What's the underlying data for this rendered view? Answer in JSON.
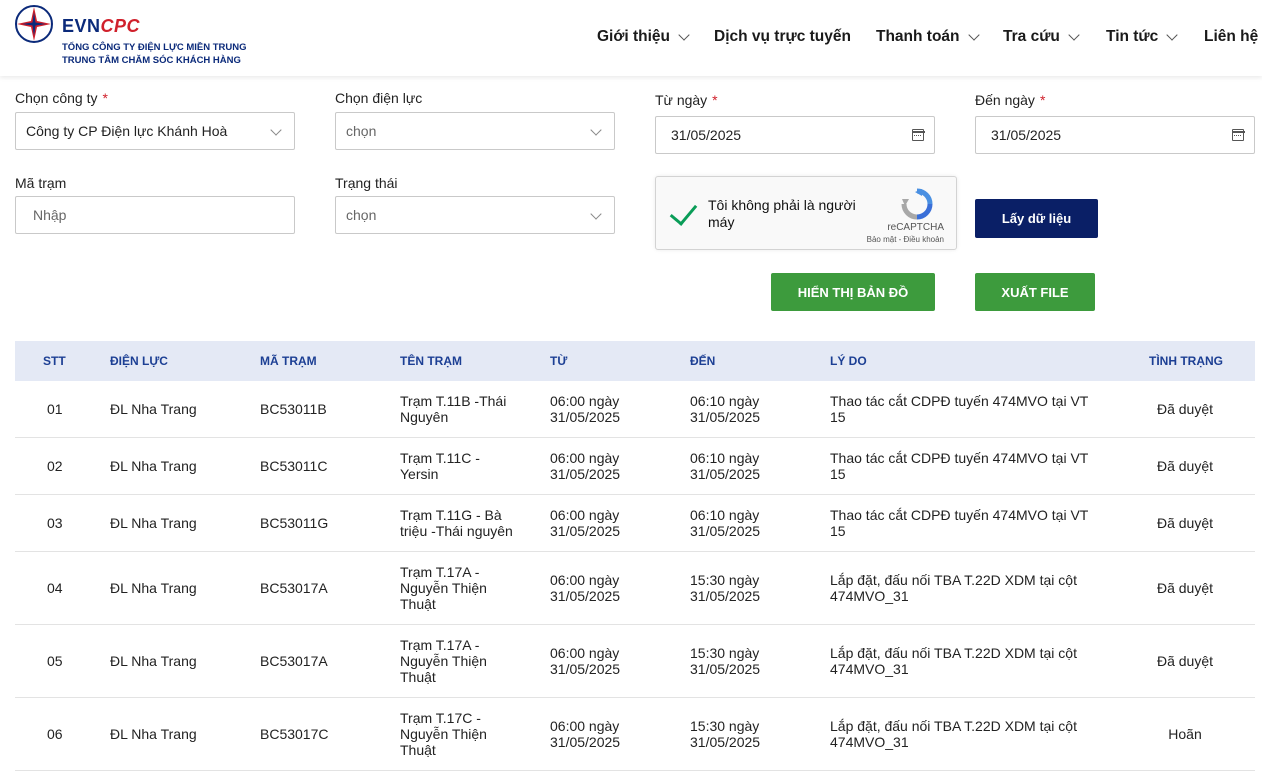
{
  "header": {
    "logo": {
      "brand_evn": "EVN",
      "brand_cpc": "CPC",
      "line1": "TỔNG CÔNG TY ĐIỆN LỰC MIỀN TRUNG",
      "line2": "TRUNG TÂM CHĂM SÓC KHÁCH HÀNG"
    },
    "nav": [
      {
        "label": "Giới thiệu",
        "has_dropdown": true
      },
      {
        "label": "Dịch vụ trực tuyến",
        "has_dropdown": false
      },
      {
        "label": "Thanh toán",
        "has_dropdown": true
      },
      {
        "label": "Tra cứu",
        "has_dropdown": true
      },
      {
        "label": "Tin tức",
        "has_dropdown": true
      },
      {
        "label": "Liên hệ",
        "has_dropdown": false
      }
    ]
  },
  "form": {
    "company": {
      "label": "Chọn công ty",
      "required": "*",
      "value": "Công ty CP Điện lực Khánh Hoà"
    },
    "branch": {
      "label": "Chọn điện lực",
      "placeholder": "chọn"
    },
    "from_date": {
      "label": "Từ ngày",
      "required": "*",
      "value": "31/05/2025"
    },
    "to_date": {
      "label": "Đến ngày",
      "required": "*",
      "value": "31/05/2025"
    },
    "station": {
      "label": "Mã trạm",
      "placeholder": "Nhập"
    },
    "status": {
      "label": "Trạng thái",
      "placeholder": "chọn"
    },
    "captcha": {
      "text": "Tôi không phải là người máy",
      "brand": "reCAPTCHA",
      "terms": "Bảo mật - Điều khoản"
    },
    "fetch_button": "Lấy dữ liệu",
    "map_button": "HIỂN THỊ BẢN ĐỒ",
    "export_button": "XUẤT FILE"
  },
  "table": {
    "headers": [
      "STT",
      "ĐIỆN LỰC",
      "MÃ TRẠM",
      "TÊN TRẠM",
      "TỪ",
      "ĐẾN",
      "LÝ DO",
      "TÌNH TRẠNG"
    ],
    "rows": [
      {
        "stt": "01",
        "dien_luc": "ĐL Nha Trang",
        "ma_tram": "BC53011B",
        "ten_tram": [
          "Trạm T.11B -Thái",
          "Nguyên"
        ],
        "tu": [
          "06:00 ngày",
          "31/05/2025"
        ],
        "den": [
          "06:10 ngày",
          "31/05/2025"
        ],
        "ly_do": [
          "Thao tác cắt CDPĐ tuyến 474MVO tại VT",
          "15"
        ],
        "tinh_trang": "Đã duyệt"
      },
      {
        "stt": "02",
        "dien_luc": "ĐL Nha Trang",
        "ma_tram": "BC53011C",
        "ten_tram": [
          "Trạm T.11C -",
          "Yersin"
        ],
        "tu": [
          "06:00 ngày",
          "31/05/2025"
        ],
        "den": [
          "06:10 ngày",
          "31/05/2025"
        ],
        "ly_do": [
          "Thao tác cắt CDPĐ tuyến 474MVO tại VT",
          "15"
        ],
        "tinh_trang": "Đã duyệt"
      },
      {
        "stt": "03",
        "dien_luc": "ĐL Nha Trang",
        "ma_tram": "BC53011G",
        "ten_tram": [
          "Trạm T.11G - Bà",
          "triệu -Thái nguyên"
        ],
        "tu": [
          "06:00 ngày",
          "31/05/2025"
        ],
        "den": [
          "06:10 ngày",
          "31/05/2025"
        ],
        "ly_do": [
          "Thao tác cắt CDPĐ tuyến 474MVO tại VT",
          "15"
        ],
        "tinh_trang": "Đã duyệt"
      },
      {
        "stt": "04",
        "dien_luc": "ĐL Nha Trang",
        "ma_tram": "BC53017A",
        "ten_tram": [
          "Trạm T.17A -",
          "Nguyễn Thiện",
          "Thuật"
        ],
        "tu": [
          "06:00 ngày",
          "31/05/2025"
        ],
        "den": [
          "15:30 ngày",
          "31/05/2025"
        ],
        "ly_do": [
          "Lắp đặt, đấu nối TBA T.22D XDM tại cột",
          "474MVO_31"
        ],
        "tinh_trang": "Đã duyệt"
      },
      {
        "stt": "05",
        "dien_luc": "ĐL Nha Trang",
        "ma_tram": "BC53017A",
        "ten_tram": [
          "Trạm T.17A -",
          "Nguyễn Thiện",
          "Thuật"
        ],
        "tu": [
          "06:00 ngày",
          "31/05/2025"
        ],
        "den": [
          "15:30 ngày",
          "31/05/2025"
        ],
        "ly_do": [
          "Lắp đặt, đấu nối TBA T.22D XDM tại cột",
          "474MVO_31"
        ],
        "tinh_trang": "Đã duyệt"
      },
      {
        "stt": "06",
        "dien_luc": "ĐL Nha Trang",
        "ma_tram": "BC53017C",
        "ten_tram": [
          "Trạm T.17C -",
          "Nguyễn Thiện",
          "Thuật"
        ],
        "tu": [
          "06:00 ngày",
          "31/05/2025"
        ],
        "den": [
          "15:30 ngày",
          "31/05/2025"
        ],
        "ly_do": [
          "Lắp đặt, đấu nối TBA T.22D XDM tại cột",
          "474MVO_31"
        ],
        "tinh_trang": "Hoãn"
      }
    ]
  },
  "colors": {
    "brand_navy": "#0b2a7a",
    "brand_red": "#d0202b",
    "button_navy": "#0a1f66",
    "button_green": "#3d9b3d",
    "table_header_bg": "#e4e9f5",
    "table_header_text": "#1c3f94",
    "check_green": "#0a9d58"
  },
  "icons": {
    "logo": "evn-star-icon",
    "dropdown": "chevron-down-icon",
    "calendar": "calendar-icon",
    "check": "checkmark-icon",
    "recaptcha": "recaptcha-icon"
  }
}
